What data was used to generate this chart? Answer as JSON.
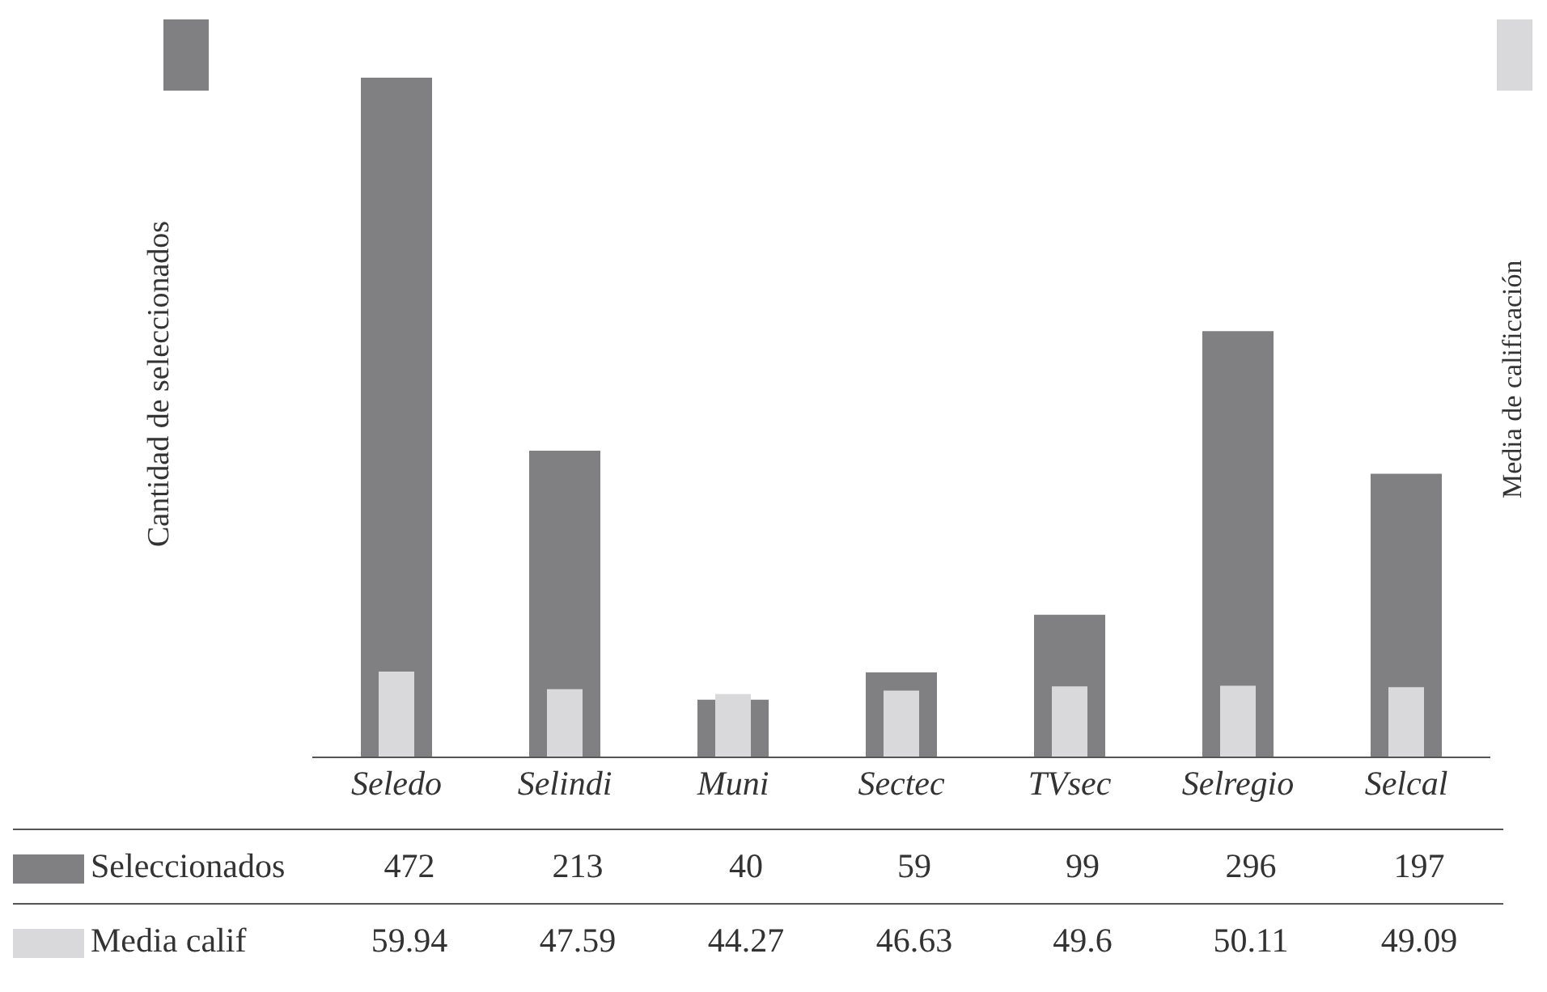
{
  "chart_data": {
    "type": "bar",
    "ylabel": "Cantidad de seleccionados",
    "y2label": "Media de calificación",
    "categories": [
      "Seledo",
      "Selindi",
      "Muni",
      "Sectec",
      "TVsec",
      "Selregio",
      "Selcal"
    ],
    "series": [
      {
        "name": "Seleccionados",
        "color": "#808083",
        "values": [
          472,
          213,
          40,
          59,
          99,
          296,
          197
        ]
      },
      {
        "name": "Media calif",
        "color": "#d9d9db",
        "axis": "y2",
        "values": [
          59.94,
          47.59,
          44.27,
          46.63,
          49.6,
          50.11,
          49.09
        ]
      }
    ],
    "ylim": [
      0,
      472
    ],
    "y2lim": [
      0,
      475
    ],
    "data_labels": true,
    "legend": "bottom",
    "grid": false
  }
}
